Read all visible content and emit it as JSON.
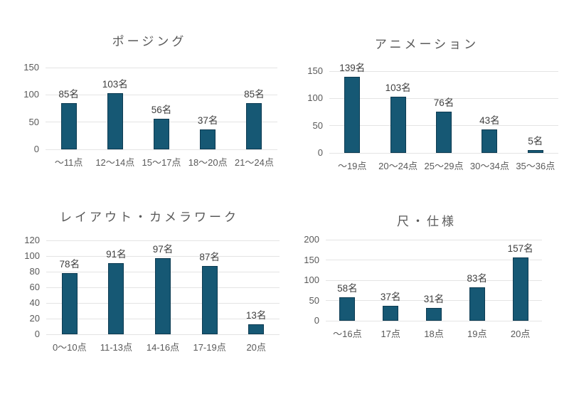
{
  "page": {
    "background": "#FFFFFF"
  },
  "colors": {
    "bar_fill": "#165874",
    "bar_border": "#0D3B52",
    "gridline": "#E4E4E4",
    "axis_text": "#595959",
    "data_label_text": "#3F3F3F",
    "title_text": "#595959"
  },
  "chart_data": [
    {
      "type": "bar",
      "title": "ポージング",
      "unit": "名",
      "categories": [
        "〜11点",
        "12〜14点",
        "15〜17点",
        "18〜20点",
        "21〜24点"
      ],
      "values": [
        85,
        103,
        56,
        37,
        85
      ],
      "data_labels": [
        "85名",
        "103名",
        "56名",
        "37名",
        "85名"
      ],
      "ylim": [
        0,
        150
      ],
      "ytick_step": 50,
      "yticks": [
        "0",
        "50",
        "100",
        "150"
      ],
      "grid": true,
      "legend": false
    },
    {
      "type": "bar",
      "title": "アニメーション",
      "unit": "名",
      "categories": [
        "〜19点",
        "20〜24点",
        "25〜29点",
        "30〜34点",
        "35〜36点"
      ],
      "values": [
        139,
        103,
        76,
        43,
        5
      ],
      "data_labels": [
        "139名",
        "103名",
        "76名",
        "43名",
        "5名"
      ],
      "ylim": [
        0,
        150
      ],
      "ytick_step": 50,
      "yticks": [
        "0",
        "50",
        "100",
        "150"
      ],
      "grid": true,
      "legend": false
    },
    {
      "type": "bar",
      "title": "レイアウト・カメラワーク",
      "unit": "名",
      "categories": [
        "0〜10点",
        "11-13点",
        "14-16点",
        "17-19点",
        "20点"
      ],
      "values": [
        78,
        91,
        97,
        87,
        13
      ],
      "data_labels": [
        "78名",
        "91名",
        "97名",
        "87名",
        "13名"
      ],
      "ylim": [
        0,
        120
      ],
      "ytick_step": 20,
      "yticks": [
        "0",
        "20",
        "40",
        "60",
        "80",
        "100",
        "120"
      ],
      "grid": true,
      "legend": false
    },
    {
      "type": "bar",
      "title": "尺・仕様",
      "unit": "名",
      "categories": [
        "〜16点",
        "17点",
        "18点",
        "19点",
        "20点"
      ],
      "values": [
        58,
        37,
        31,
        83,
        157
      ],
      "data_labels": [
        "58名",
        "37名",
        "31名",
        "83名",
        "157名"
      ],
      "ylim": [
        0,
        200
      ],
      "ytick_step": 50,
      "yticks": [
        "0",
        "50",
        "100",
        "150",
        "200"
      ],
      "grid": true,
      "legend": false
    }
  ]
}
